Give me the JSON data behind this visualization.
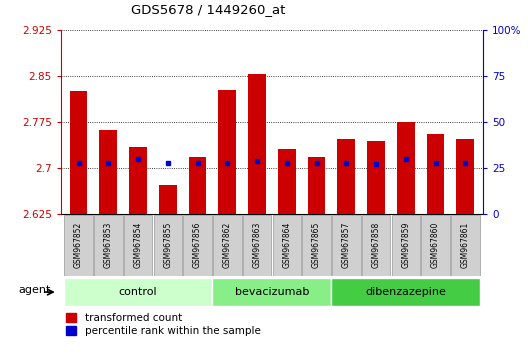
{
  "title": "GDS5678 / 1449260_at",
  "samples": [
    "GSM967852",
    "GSM967853",
    "GSM967854",
    "GSM967855",
    "GSM967856",
    "GSM967862",
    "GSM967863",
    "GSM967864",
    "GSM967865",
    "GSM967857",
    "GSM967858",
    "GSM967859",
    "GSM967860",
    "GSM967861"
  ],
  "red_values": [
    2.825,
    2.762,
    2.735,
    2.672,
    2.718,
    2.828,
    2.853,
    2.732,
    2.718,
    2.748,
    2.745,
    2.775,
    2.755,
    2.748
  ],
  "blue_percentile": [
    28,
    28,
    30,
    28,
    28,
    28,
    29,
    28,
    28,
    28,
    27,
    30,
    28,
    28
  ],
  "ylim": [
    2.625,
    2.925
  ],
  "yticks": [
    2.625,
    2.7,
    2.775,
    2.85,
    2.925
  ],
  "right_yticks": [
    0,
    25,
    50,
    75,
    100
  ],
  "right_ylim": [
    0,
    100
  ],
  "bar_bottom": 2.625,
  "red_color": "#cc0000",
  "blue_color": "#0000cc",
  "groups": [
    {
      "name": "control",
      "indices": [
        0,
        1,
        2,
        3,
        4
      ],
      "color": "#ccffcc"
    },
    {
      "name": "bevacizumab",
      "indices": [
        5,
        6,
        7,
        8
      ],
      "color": "#88ee88"
    },
    {
      "name": "dibenzazepine",
      "indices": [
        9,
        10,
        11,
        12,
        13
      ],
      "color": "#44cc44"
    }
  ],
  "agent_label": "agent",
  "legend_red": "transformed count",
  "legend_blue": "percentile rank within the sample",
  "bar_width": 0.6,
  "axis_color_red": "#cc0000",
  "axis_color_blue": "#0000cc",
  "bg_color": "#ffffff",
  "plot_bg": "#ffffff",
  "sample_box_color": "#d0d0d0",
  "sample_box_edge": "#999999"
}
